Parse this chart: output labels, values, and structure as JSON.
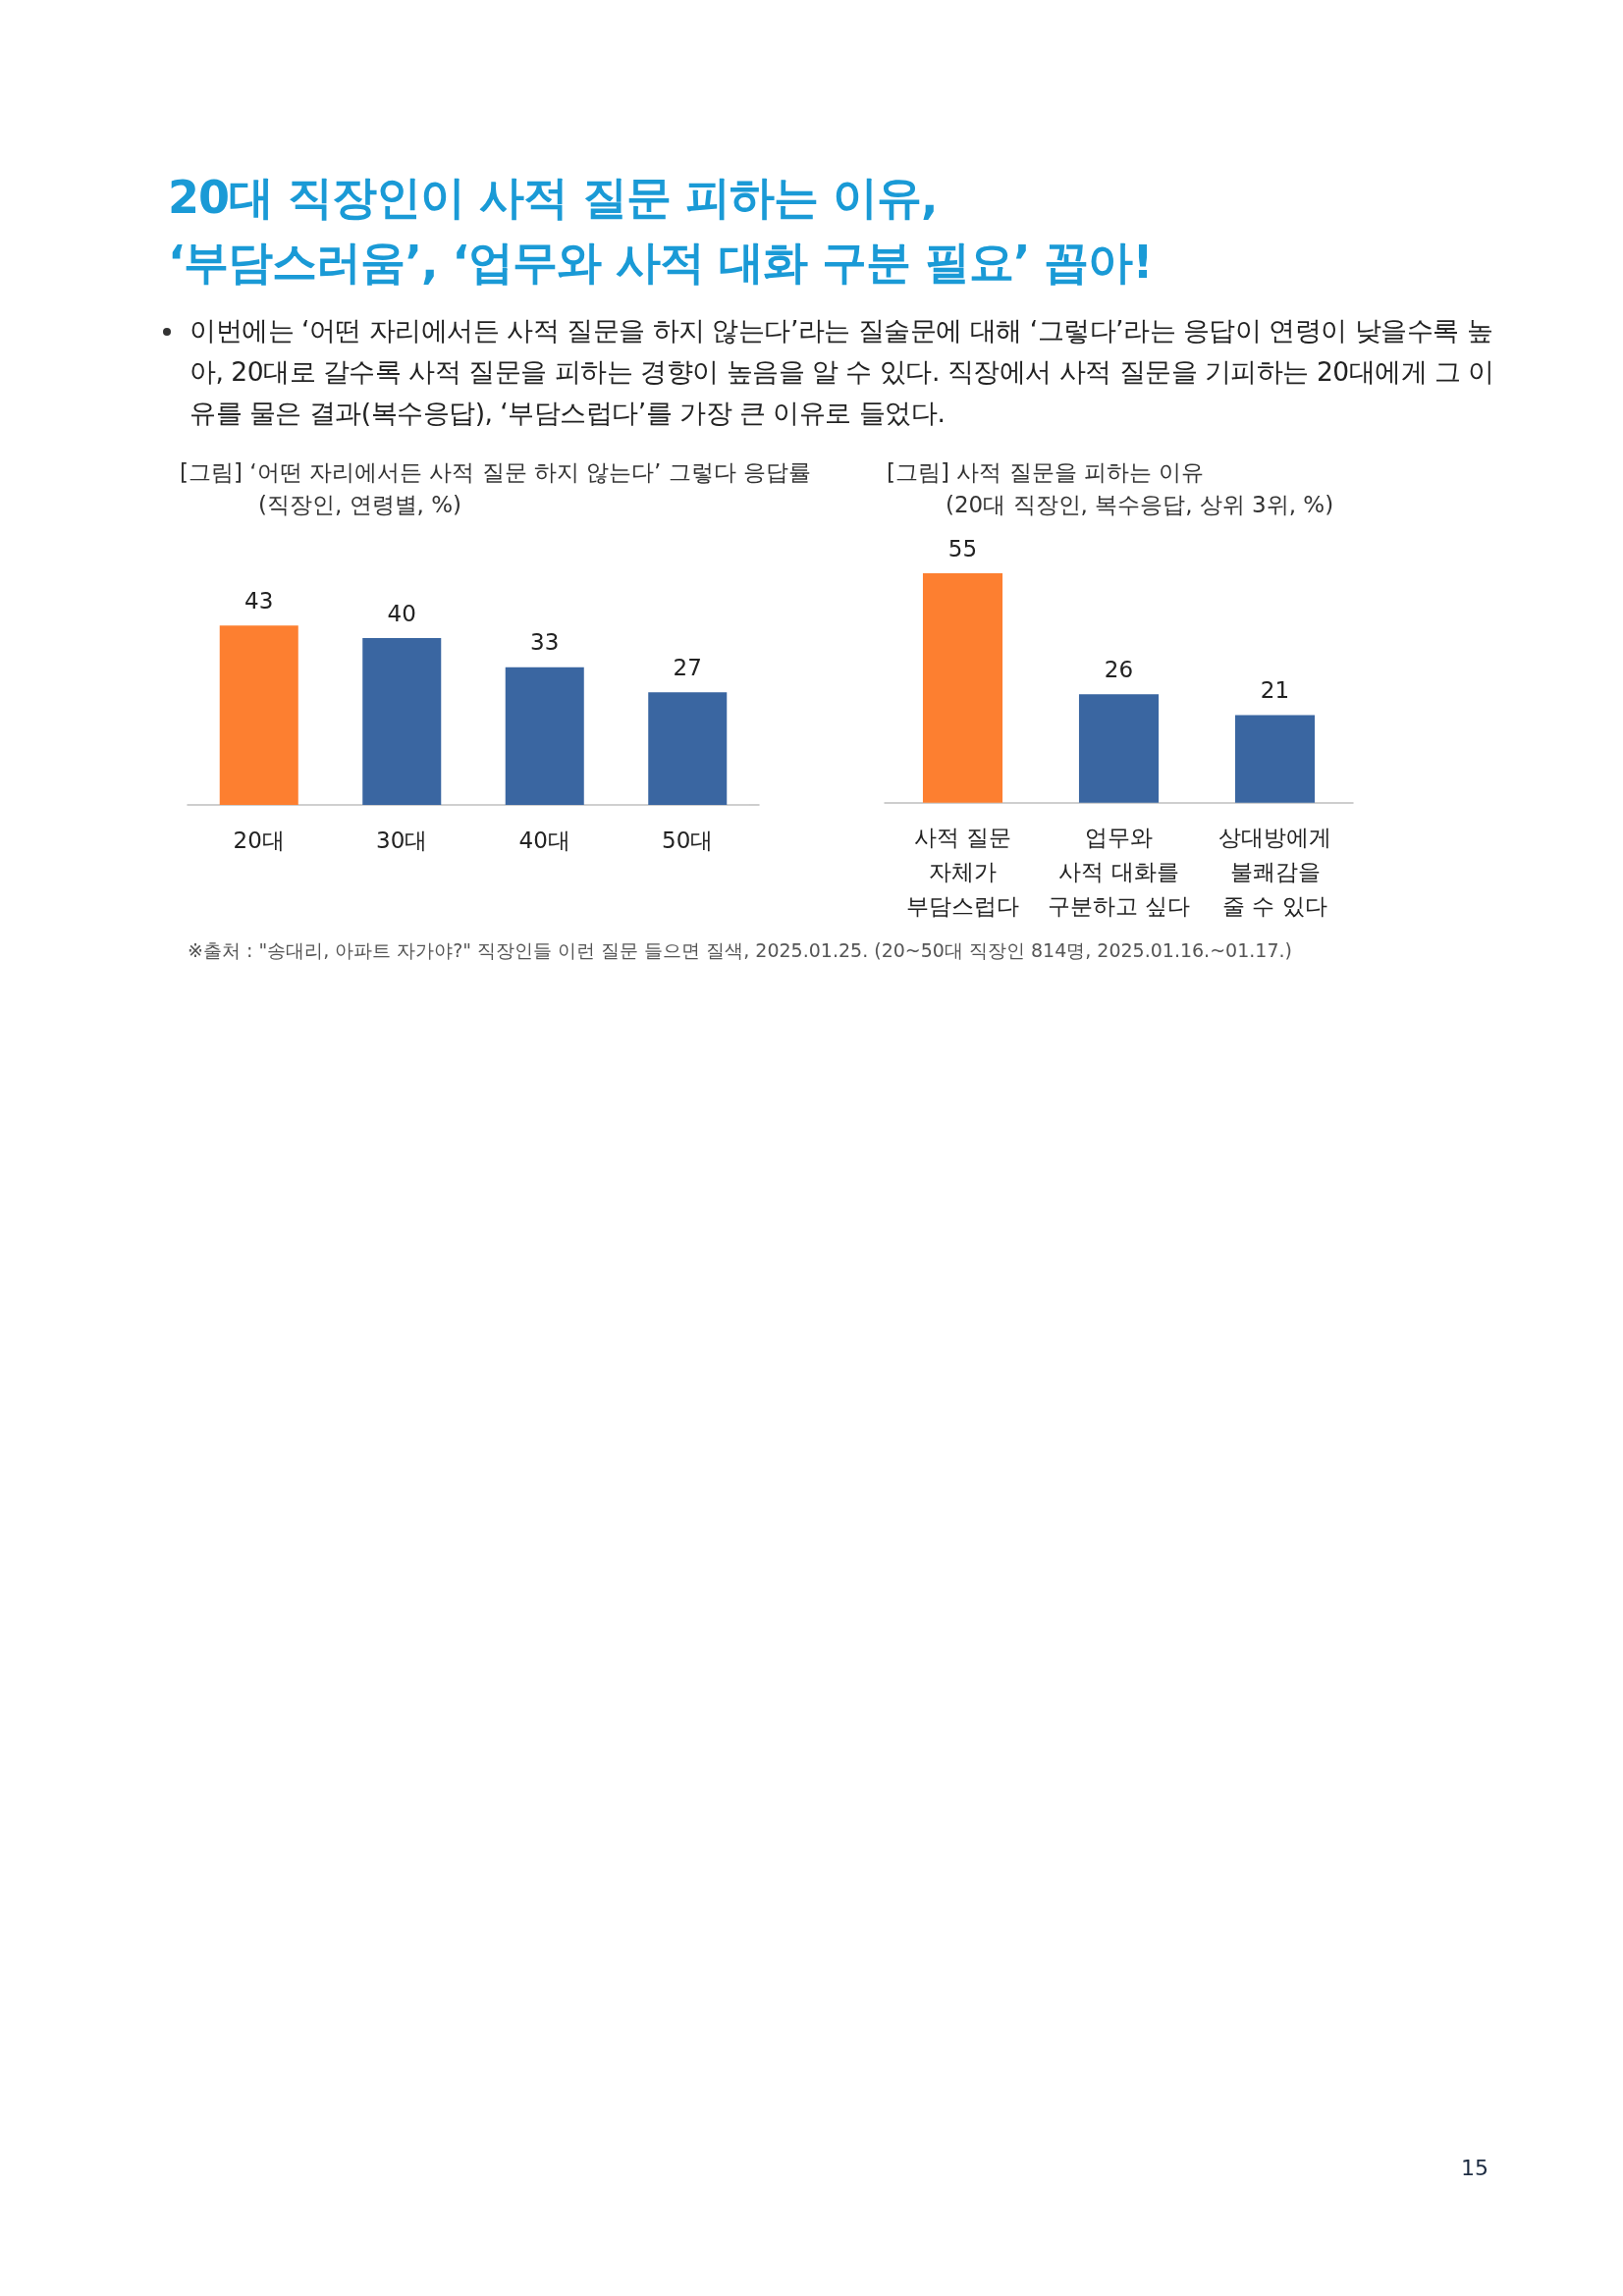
{
  "chart_data": [
    {
      "type": "other",
      "title": "20대 직장인이 사적 질문 피하는 이유,\n‘부담스러움’, ‘업무와 사적 대화 구분 필요’ 꼽아!",
      "subtitle": "이번에는 ‘어떤 자리에서든 사적 질문을 하지 않는다’라는 질술문에 대해 ‘그렇다’라는 응답이 연령이 낮을수록 높아, 20대로 갈수록 사적 질문을 피하는 경향이 높음을 알 수 있다. 직장에서 사적 질문을 기피하는 20대에게 그 이유를 물은 결과(복수응답), ‘부담스럽다’를 가장 큰 이유로 들었다.",
      "annotations": [
        "※출처 : \"송대리, 아파트 자가야?\" 직장인들 이런 질문 들으면 질색, 2025.01.25. (20~50대 직장인 814명, 2025.01.16.~01.17.)",
        "15"
      ]
    },
    {
      "type": "bar",
      "title": "[그림] ‘어떤 자리에서든 사적 질문 하지 않는다’ 그렇다 응답률",
      "subtitle": "(직장인, 연령별, %)",
      "categories": [
        "20대",
        "30대",
        "40대",
        "50대"
      ],
      "values": [
        43,
        40,
        33,
        27
      ],
      "colors": [
        "#fd7f30",
        "#3a66a1",
        "#3a66a1",
        "#3a66a1"
      ],
      "data_labels": true
    },
    {
      "type": "bar",
      "title": "[그림] 사적 질문을 피하는 이유",
      "subtitle": "(20대 직장인, 복수응답, 상위 3위, %)",
      "categories": [
        "사적 질문\n자체가\n부담스럽다",
        "업무와\n사적 대화를\n구분하고 싶다",
        "상대방에게\n불쾌감을\n줄 수 있다"
      ],
      "values": [
        55,
        26,
        21
      ],
      "colors": [
        "#fd7f30",
        "#3a66a1",
        "#3a66a1"
      ],
      "data_labels": true
    }
  ]
}
